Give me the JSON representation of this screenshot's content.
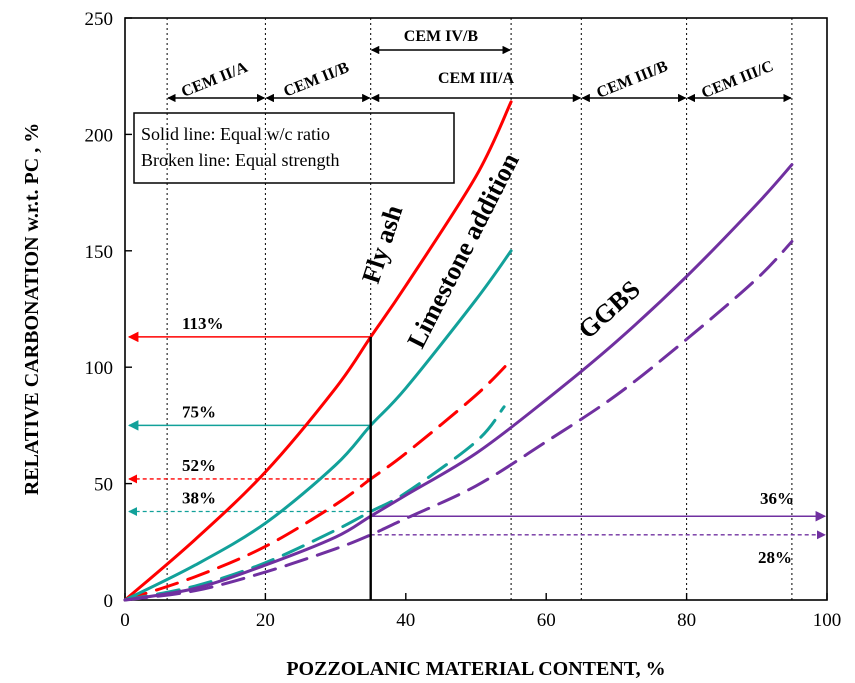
{
  "chart_data": {
    "type": "line",
    "xlabel": "POZZOLANIC  MATERIAL CONTENT, %",
    "ylabel": "RELATIVE CARBONATION w.r.t. PC , %",
    "xlim": [
      0,
      100
    ],
    "ylim": [
      0,
      250
    ],
    "xticks": [
      0,
      20,
      40,
      60,
      80,
      100
    ],
    "yticks": [
      0,
      50,
      100,
      150,
      200,
      250
    ],
    "grid": false,
    "legend_box": [
      "Solid line: Equal w/c ratio",
      "Broken line: Equal strength"
    ],
    "cem_boundaries": [
      6,
      20,
      35,
      55,
      65,
      80,
      95
    ],
    "cem_classes": [
      {
        "label": "CEM II/A",
        "from": 6,
        "to": 20
      },
      {
        "label": "CEM II/B",
        "from": 20,
        "to": 35
      },
      {
        "label": "CEM IV/B",
        "from": 35,
        "to": 55
      },
      {
        "label": "CEM III/A",
        "from": 35,
        "to": 65
      },
      {
        "label": "CEM III/B",
        "from": 65,
        "to": 80
      },
      {
        "label": "CEM III/C",
        "from": 80,
        "to": 95
      }
    ],
    "series": [
      {
        "name": "Fly ash",
        "style": "solid",
        "color": "#ff0000",
        "x": [
          0,
          10,
          20,
          30,
          35,
          40,
          50,
          55
        ],
        "y": [
          0,
          26,
          55,
          91,
          113,
          135,
          182,
          214
        ]
      },
      {
        "name": "Fly ash",
        "style": "dashed",
        "color": "#ff0000",
        "x": [
          0,
          10,
          20,
          30,
          35,
          40,
          50,
          55
        ],
        "y": [
          0,
          10,
          23,
          41,
          52,
          63,
          88,
          103
        ]
      },
      {
        "name": "Limestone addition",
        "style": "solid",
        "color": "#12a19a",
        "x": [
          0,
          10,
          20,
          30,
          35,
          40,
          50,
          55
        ],
        "y": [
          0,
          15,
          33,
          58,
          75,
          91,
          129,
          150
        ]
      },
      {
        "name": "Limestone addition",
        "style": "dashed",
        "color": "#12a19a",
        "x": [
          0,
          10,
          20,
          30,
          35,
          40,
          50,
          54
        ],
        "y": [
          0,
          6,
          16,
          30,
          38,
          46,
          68,
          83
        ]
      },
      {
        "name": "GGBS",
        "style": "solid",
        "color": "#7030a0",
        "x": [
          0,
          10,
          20,
          30,
          35,
          40,
          50,
          60,
          70,
          80,
          90,
          95
        ],
        "y": [
          0,
          5,
          15,
          27,
          36,
          45,
          63,
          86,
          111,
          139,
          170,
          187
        ]
      },
      {
        "name": "GGBS",
        "style": "dashed",
        "color": "#7030a0",
        "x": [
          0,
          10,
          20,
          30,
          35,
          40,
          50,
          60,
          70,
          80,
          90,
          95
        ],
        "y": [
          0,
          4,
          12,
          22,
          28,
          35,
          49,
          68,
          88,
          112,
          138,
          154
        ]
      }
    ],
    "annotations": [
      {
        "text": "113%",
        "y": 113,
        "style": "solid",
        "color": "#ff0000",
        "direction": "left"
      },
      {
        "text": "75%",
        "y": 75,
        "style": "solid",
        "color": "#12a19a",
        "direction": "left"
      },
      {
        "text": "52%",
        "y": 52,
        "style": "dashed",
        "color": "#ff0000",
        "direction": "left"
      },
      {
        "text": "38%",
        "y": 38,
        "style": "dashed",
        "color": "#12a19a",
        "direction": "left"
      },
      {
        "text": "36%",
        "y": 36,
        "style": "solid",
        "color": "#7030a0",
        "direction": "right"
      },
      {
        "text": "28%",
        "y": 28,
        "style": "dashed",
        "color": "#7030a0",
        "direction": "right"
      }
    ],
    "reference_line": {
      "x": 35,
      "y_from": 0,
      "y_to": 113
    }
  }
}
